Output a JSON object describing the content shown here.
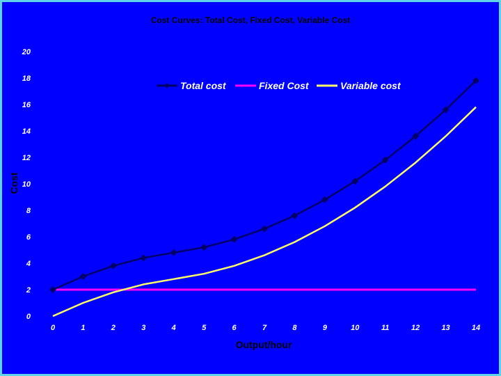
{
  "chart_data": {
    "type": "line",
    "title": "Cost Curves: Total Cost, Fixed Cost, Variable Cost",
    "xlabel": "Output/hour",
    "ylabel": "Cost",
    "x": [
      0,
      1,
      2,
      3,
      4,
      5,
      6,
      7,
      8,
      9,
      10,
      11,
      12,
      13,
      14
    ],
    "xlim": [
      0,
      14
    ],
    "ylim": [
      0,
      20
    ],
    "yticks": [
      0,
      2,
      4,
      6,
      8,
      10,
      12,
      14,
      16,
      18,
      20
    ],
    "grid": false,
    "legend_position": "top-right",
    "series": [
      {
        "name": "Total cost",
        "color": "#000066",
        "marker": "diamond",
        "values": [
          2,
          3,
          3.8,
          4.4,
          4.8,
          5.2,
          5.8,
          6.6,
          7.6,
          8.8,
          10.2,
          11.8,
          13.6,
          15.6,
          17.8
        ]
      },
      {
        "name": "Fixed Cost",
        "color": "#FF00FF",
        "marker": "none",
        "values": [
          2,
          2,
          2,
          2,
          2,
          2,
          2,
          2,
          2,
          2,
          2,
          2,
          2,
          2,
          2
        ]
      },
      {
        "name": "Variable cost",
        "color": "#FFFF66",
        "marker": "none",
        "values": [
          0,
          1,
          1.8,
          2.4,
          2.8,
          3.2,
          3.8,
          4.6,
          5.6,
          6.8,
          8.2,
          9.8,
          11.6,
          13.6,
          15.8
        ]
      }
    ]
  }
}
